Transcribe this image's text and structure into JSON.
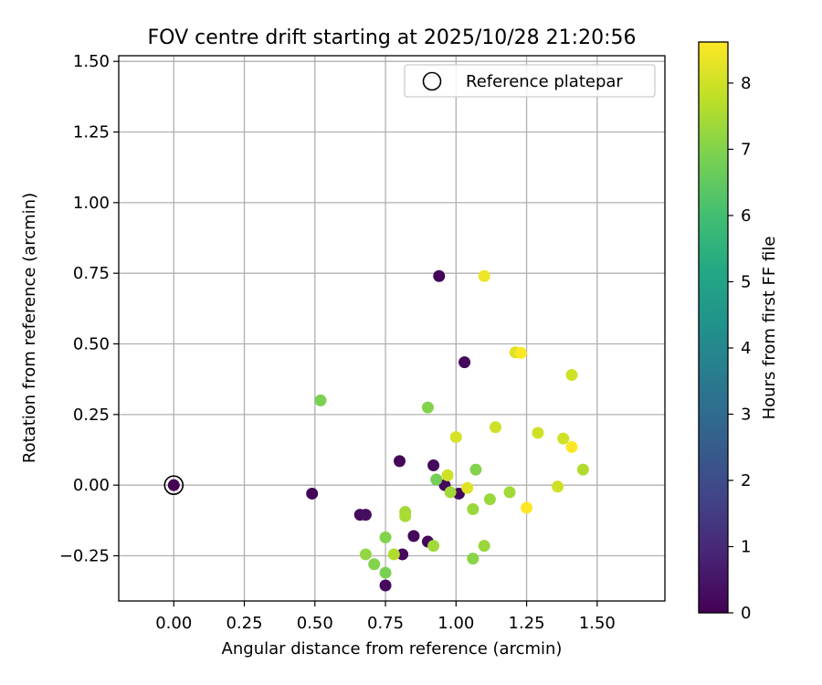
{
  "chart_data": {
    "type": "scatter",
    "title": "FOV centre drift starting at 2025/10/28 21:20:56",
    "xlabel": "Angular distance from reference (arcmin)",
    "ylabel": "Rotation from reference (arcmin)",
    "xlim": [
      -0.195,
      1.74
    ],
    "ylim": [
      -0.41,
      1.52
    ],
    "xticks": [
      0.0,
      0.25,
      0.5,
      0.75,
      1.0,
      1.25,
      1.5
    ],
    "xtick_labels": [
      "0.00",
      "0.25",
      "0.50",
      "0.75",
      "1.00",
      "1.25",
      "1.50"
    ],
    "yticks": [
      -0.25,
      0.0,
      0.25,
      0.5,
      0.75,
      1.0,
      1.25,
      1.5
    ],
    "ytick_labels": [
      "−0.25",
      "0.00",
      "0.25",
      "0.50",
      "0.75",
      "1.00",
      "1.25",
      "1.50"
    ],
    "grid": true,
    "legend": {
      "position": "top-right",
      "label": "Reference platepar"
    },
    "reference_point": {
      "x": 0.0,
      "y": 0.0,
      "hours": 0.0
    },
    "colorbar": {
      "label": "Hours from first FF file",
      "min": 0,
      "max": 8.62,
      "colormap": "viridis",
      "ticks": [
        0,
        1,
        2,
        3,
        4,
        5,
        6,
        7,
        8
      ],
      "tick_labels": [
        "0",
        "1",
        "2",
        "3",
        "4",
        "5",
        "6",
        "7",
        "8"
      ]
    },
    "points": [
      {
        "x": 0.94,
        "y": 0.74,
        "hours": 0.1
      },
      {
        "x": 1.03,
        "y": 0.435,
        "hours": 0.2
      },
      {
        "x": 0.8,
        "y": 0.085,
        "hours": 0.1
      },
      {
        "x": 0.92,
        "y": 0.07,
        "hours": 0.2
      },
      {
        "x": 0.49,
        "y": -0.03,
        "hours": 0.1
      },
      {
        "x": 0.66,
        "y": -0.105,
        "hours": 0.3
      },
      {
        "x": 0.68,
        "y": -0.105,
        "hours": 0.3
      },
      {
        "x": 0.96,
        "y": 0.0,
        "hours": 0.2
      },
      {
        "x": 1.01,
        "y": -0.03,
        "hours": 0.2
      },
      {
        "x": 0.85,
        "y": -0.18,
        "hours": 0.2
      },
      {
        "x": 0.9,
        "y": -0.2,
        "hours": 0.2
      },
      {
        "x": 0.81,
        "y": -0.245,
        "hours": 0.2
      },
      {
        "x": 0.75,
        "y": -0.355,
        "hours": 0.2
      },
      {
        "x": 0.52,
        "y": 0.3,
        "hours": 6.9
      },
      {
        "x": 0.9,
        "y": 0.275,
        "hours": 7.0
      },
      {
        "x": 0.93,
        "y": 0.02,
        "hours": 6.8
      },
      {
        "x": 1.07,
        "y": 0.055,
        "hours": 7.0
      },
      {
        "x": 0.98,
        "y": -0.025,
        "hours": 7.4
      },
      {
        "x": 1.12,
        "y": -0.05,
        "hours": 7.3
      },
      {
        "x": 1.19,
        "y": -0.025,
        "hours": 7.4
      },
      {
        "x": 1.06,
        "y": -0.085,
        "hours": 7.3
      },
      {
        "x": 0.82,
        "y": -0.095,
        "hours": 7.4
      },
      {
        "x": 0.82,
        "y": -0.11,
        "hours": 7.5
      },
      {
        "x": 0.75,
        "y": -0.185,
        "hours": 7.0
      },
      {
        "x": 0.92,
        "y": -0.215,
        "hours": 7.4
      },
      {
        "x": 1.1,
        "y": -0.215,
        "hours": 7.3
      },
      {
        "x": 0.68,
        "y": -0.245,
        "hours": 7.2
      },
      {
        "x": 0.78,
        "y": -0.245,
        "hours": 7.6
      },
      {
        "x": 1.06,
        "y": -0.26,
        "hours": 7.1
      },
      {
        "x": 0.71,
        "y": -0.28,
        "hours": 7.0
      },
      {
        "x": 0.75,
        "y": -0.31,
        "hours": 6.9
      },
      {
        "x": 1.45,
        "y": 0.055,
        "hours": 7.6
      },
      {
        "x": 1.1,
        "y": 0.74,
        "hours": 8.4
      },
      {
        "x": 1.21,
        "y": 0.47,
        "hours": 8.2
      },
      {
        "x": 1.23,
        "y": 0.468,
        "hours": 8.6
      },
      {
        "x": 1.41,
        "y": 0.39,
        "hours": 8.0
      },
      {
        "x": 1.14,
        "y": 0.205,
        "hours": 8.0
      },
      {
        "x": 1.0,
        "y": 0.17,
        "hours": 8.1
      },
      {
        "x": 1.29,
        "y": 0.185,
        "hours": 8.0
      },
      {
        "x": 1.38,
        "y": 0.165,
        "hours": 8.0
      },
      {
        "x": 1.41,
        "y": 0.135,
        "hours": 8.6
      },
      {
        "x": 0.97,
        "y": 0.035,
        "hours": 8.0
      },
      {
        "x": 1.04,
        "y": -0.01,
        "hours": 8.2
      },
      {
        "x": 1.36,
        "y": -0.005,
        "hours": 8.0
      },
      {
        "x": 1.25,
        "y": -0.08,
        "hours": 8.6
      }
    ]
  }
}
